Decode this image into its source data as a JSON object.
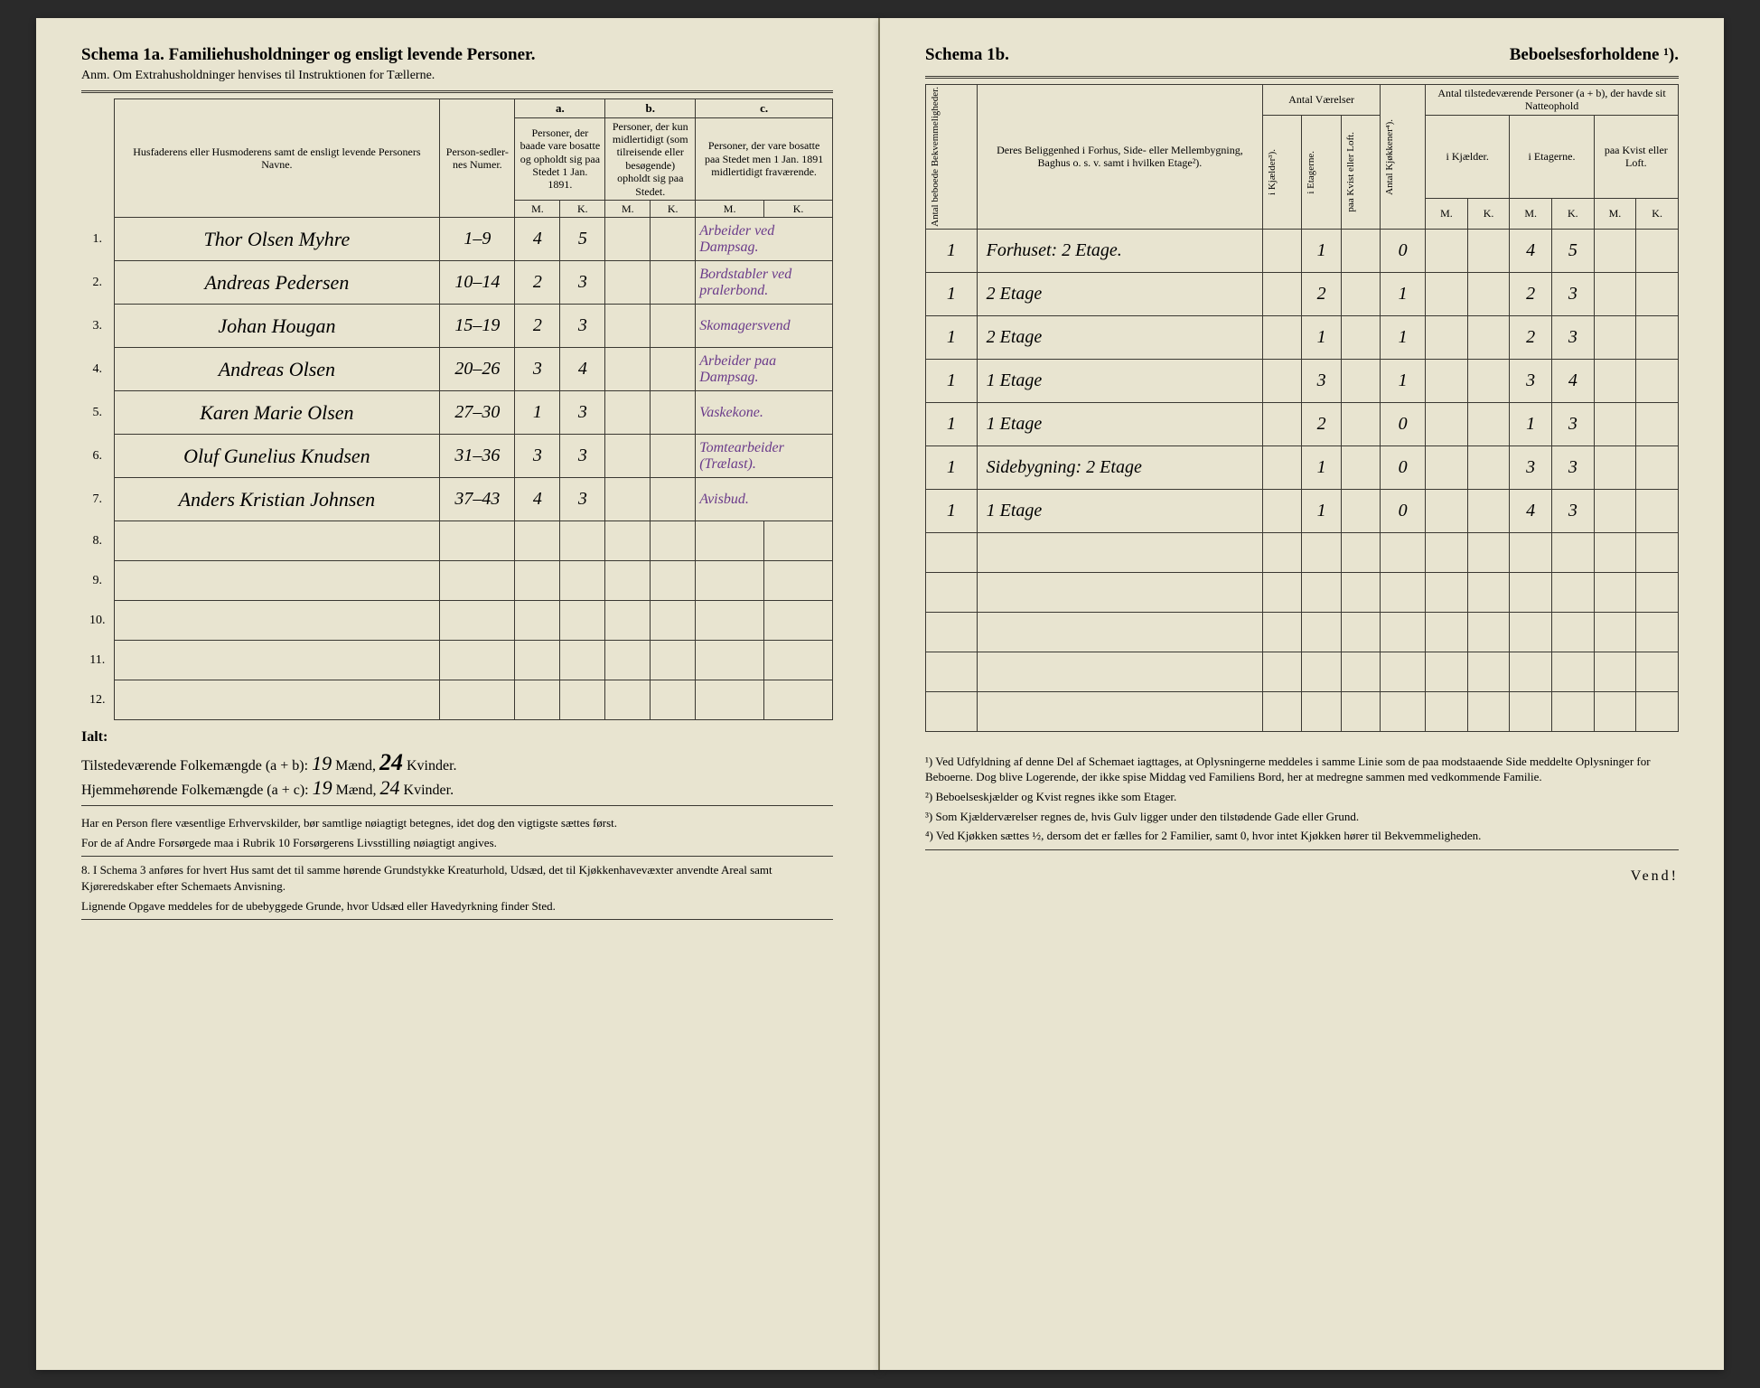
{
  "left": {
    "title": "Schema 1a. Familiehusholdninger og ensligt levende Personer.",
    "subtitle": "Anm. Om Extrahusholdninger henvises til Instruktionen for Tællerne.",
    "headers": {
      "name": "Husfaderens eller Husmoderens samt de ensligt levende Personers Navne.",
      "num": "Person-sedler-nes Numer.",
      "a_label": "a.",
      "a_text": "Personer, der baade vare bosatte og opholdt sig paa Stedet 1 Jan. 1891.",
      "b_label": "b.",
      "b_text": "Personer, der kun midlertidigt (som tilreisende eller besøgende) opholdt sig paa Stedet.",
      "c_label": "c.",
      "c_text": "Personer, der vare bosatte paa Stedet men 1 Jan. 1891 midlertidigt fraværende.",
      "m": "M.",
      "k": "K."
    },
    "rows": [
      {
        "n": "1.",
        "name": "Thor Olsen Myhre",
        "num": "1–9",
        "aM": "4",
        "aK": "5",
        "note": "Arbeider ved Dampsag."
      },
      {
        "n": "2.",
        "name": "Andreas Pedersen",
        "num": "10–14",
        "aM": "2",
        "aK": "3",
        "note": "Bordstabler ved pralerbond."
      },
      {
        "n": "3.",
        "name": "Johan Hougan",
        "num": "15–19",
        "aM": "2",
        "aK": "3",
        "note": "Skomagersvend"
      },
      {
        "n": "4.",
        "name": "Andreas Olsen",
        "num": "20–26",
        "aM": "3",
        "aK": "4",
        "note": "Arbeider paa Dampsag."
      },
      {
        "n": "5.",
        "name": "Karen Marie Olsen",
        "num": "27–30",
        "aM": "1",
        "aK": "3",
        "note": "Vaskekone."
      },
      {
        "n": "6.",
        "name": "Oluf Gunelius Knudsen",
        "num": "31–36",
        "aM": "3",
        "aK": "3",
        "note": "Tomtearbeider (Trælast)."
      },
      {
        "n": "7.",
        "name": "Anders Kristian Johnsen",
        "num": "37–43",
        "aM": "4",
        "aK": "3",
        "note": "Avisbud."
      }
    ],
    "empty_rows": [
      "8.",
      "9.",
      "10.",
      "11.",
      "12."
    ],
    "ialt": "Ialt:",
    "totals1_label": "Tilstedeværende Folkemængde (a + b): ",
    "totals1_m": "19",
    "totals1_mid": " Mænd, ",
    "totals1_k": "24",
    "totals1_end": " Kvinder.",
    "totals2_label": "Hjemmehørende Folkemængde (a + c): ",
    "totals2_m": "19",
    "totals2_mid": " Mænd, ",
    "totals2_k": "24",
    "totals2_end": " Kvinder.",
    "footer1": "Har en Person flere væsentlige Erhvervskilder, bør samtlige nøiagtigt betegnes, idet dog den vigtigste sættes først.",
    "footer2": "For de af Andre Forsørgede maa i Rubrik 10 Forsørgerens Livsstilling nøiagtigt angives.",
    "footer3a": "8. I Schema 3 anføres for hvert Hus samt det til samme hørende Grundstykke Kreaturhold, Udsæd, det til Kjøkkenhavevæxter anvendte Areal samt Kjøreredskaber efter Schemaets Anvisning.",
    "footer3b": "Lignende Opgave meddeles for de ubebyggede Grunde, hvor Udsæd eller Havedyrkning finder Sted."
  },
  "right": {
    "title_a": "Schema 1b.",
    "title_b": "Beboelsesforholdene ¹).",
    "headers": {
      "bekv": "Antal beboede Bekvemmeligheder.",
      "belig": "Deres Beliggenhed i Forhus, Side- eller Mellembygning, Baghus o. s. v. samt i hvilken Etage²).",
      "vaer": "Antal Værelser",
      "kjael": "i Kjælder³).",
      "etag": "i Etagerne.",
      "kvist": "paa Kvist eller Loft.",
      "kjok": "Antal Kjøkkener⁴).",
      "tilst": "Antal tilstedeværende Personer (a + b), der havde sit Natteophold",
      "ik": "i Kjælder.",
      "ie": "i Etagerne.",
      "pk": "paa Kvist eller Loft.",
      "m": "M.",
      "k": "K."
    },
    "rows": [
      {
        "bekv": "1",
        "belig": "Forhuset: 2 Etage.",
        "etag": "1",
        "kjok": "0",
        "ieM": "4",
        "ieK": "5"
      },
      {
        "bekv": "1",
        "belig": "2 Etage",
        "etag": "2",
        "kjok": "1",
        "ieM": "2",
        "ieK": "3"
      },
      {
        "bekv": "1",
        "belig": "2 Etage",
        "etag": "1",
        "kjok": "1",
        "ieM": "2",
        "ieK": "3"
      },
      {
        "bekv": "1",
        "belig": "1 Etage",
        "etag": "3",
        "kjok": "1",
        "ieM": "3",
        "ieK": "4"
      },
      {
        "bekv": "1",
        "belig": "1 Etage",
        "etag": "2",
        "kjok": "0",
        "ieM": "1",
        "ieK": "3"
      },
      {
        "bekv": "1",
        "belig": "Sidebygning: 2 Etage",
        "etag": "1",
        "kjok": "0",
        "ieM": "3",
        "ieK": "3"
      },
      {
        "bekv": "1",
        "belig": "1 Etage",
        "etag": "1",
        "kjok": "0",
        "ieM": "4",
        "ieK": "3"
      }
    ],
    "fn1": "¹) Ved Udfyldning af denne Del af Schemaet iagttages, at Oplysningerne meddeles i samme Linie som de paa modstaaende Side meddelte Oplysninger for Beboerne. Dog blive Logerende, der ikke spise Middag ved Familiens Bord, her at medregne sammen med vedkommende Familie.",
    "fn2": "²) Beboelseskjælder og Kvist regnes ikke som Etager.",
    "fn3": "³) Som Kjælderværelser regnes de, hvis Gulv ligger under den tilstødende Gade eller Grund.",
    "fn4": "⁴) Ved Kjøkken sættes ½, dersom det er fælles for 2 Familier, samt 0, hvor intet Kjøkken hører til Bekvemmeligheden.",
    "vend": "Vend!"
  },
  "colors": {
    "paper": "#e8e4d0",
    "ink": "#3a3832",
    "purple": "#6a3a8a",
    "background": "#2a2a2a"
  }
}
